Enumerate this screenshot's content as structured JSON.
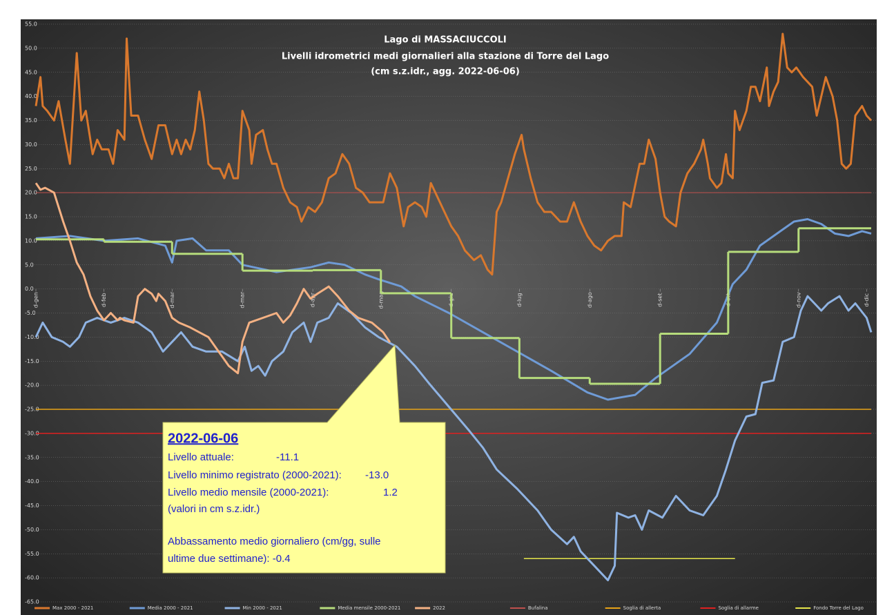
{
  "chart_data": {
    "type": "line",
    "title": "Lago di MASSACIUCCOLI",
    "subtitle": [
      "Livelli idrometrici medi giornalieri alla stazione di Torre del Lago",
      "(cm s.z.idr., agg.  2022-06-06)"
    ],
    "xlim": [
      0,
      368
    ],
    "xticks": [
      {
        "value": 0,
        "label": "d-gen"
      },
      {
        "value": 30,
        "label": "d-feb"
      },
      {
        "value": 60,
        "label": "d-mar"
      },
      {
        "value": 91,
        "label": "d-mar"
      },
      {
        "value": 122,
        "label": "d-apr"
      },
      {
        "value": 152,
        "label": "d-mag"
      },
      {
        "value": 183,
        "label": "d-giu"
      },
      {
        "value": 213,
        "label": "d-lug"
      },
      {
        "value": 244,
        "label": "d-ago"
      },
      {
        "value": 275,
        "label": "d-set"
      },
      {
        "value": 305,
        "label": "d-ott"
      },
      {
        "value": 336,
        "label": "d-nov"
      },
      {
        "value": 366,
        "label": "d-dic"
      }
    ],
    "ylim": [
      -65,
      55
    ],
    "yticks": [
      {
        "value": 55,
        "label": "55.0"
      },
      {
        "value": 50,
        "label": "50.0"
      },
      {
        "value": 45,
        "label": "45.0"
      },
      {
        "value": 40,
        "label": "40.0"
      },
      {
        "value": 35,
        "label": "35.0"
      },
      {
        "value": 30,
        "label": "30.0"
      },
      {
        "value": 25,
        "label": "25.0"
      },
      {
        "value": 20,
        "label": "20.0"
      },
      {
        "value": 15,
        "label": "15.0"
      },
      {
        "value": 10,
        "label": "10.0"
      },
      {
        "value": 5,
        "label": "5.0"
      },
      {
        "value": 0,
        "label": "0.0"
      },
      {
        "value": -5,
        "label": "-5.0"
      },
      {
        "value": -10,
        "label": "-10.0"
      },
      {
        "value": -15,
        "label": "-15.0"
      },
      {
        "value": -20,
        "label": "-20.0"
      },
      {
        "value": -25,
        "label": "-25.0"
      },
      {
        "value": -30,
        "label": "-30.0"
      },
      {
        "value": -35,
        "label": "-35.0"
      },
      {
        "value": -40,
        "label": "-40.0"
      },
      {
        "value": -45,
        "label": "-45.0"
      },
      {
        "value": -50,
        "label": "-50.0"
      },
      {
        "value": -55,
        "label": "-55.0"
      },
      {
        "value": -60,
        "label": "-60.0"
      },
      {
        "value": -65,
        "label": "-65.0"
      }
    ],
    "grid": true,
    "legend": "bottom",
    "series": [
      {
        "name": "Max 2000 - 2021",
        "color": "#d9782d",
        "width": 3,
        "x": [
          0,
          2,
          3,
          5,
          8,
          10,
          13,
          15,
          18,
          20,
          22,
          25,
          27,
          29,
          32,
          34,
          36,
          39,
          40,
          42,
          45,
          48,
          51,
          54,
          57,
          60,
          62,
          64,
          66,
          68,
          70,
          72,
          74,
          76,
          78,
          81,
          83,
          85,
          87,
          89,
          91,
          94,
          95,
          97,
          100,
          102,
          104,
          106,
          109,
          112,
          115,
          117,
          120,
          123,
          126,
          129,
          132,
          135,
          138,
          141,
          144,
          147,
          150,
          153,
          156,
          159,
          162,
          164,
          167,
          170,
          172,
          174,
          177,
          180,
          183,
          186,
          189,
          193,
          196,
          199,
          201,
          203,
          205,
          208,
          211,
          214,
          215,
          218,
          221,
          224,
          227,
          231,
          234,
          237,
          240,
          243,
          246,
          249,
          252,
          255,
          258,
          259,
          262,
          266,
          268,
          270,
          273,
          275,
          277,
          279,
          282,
          284,
          287,
          290,
          293,
          294,
          296,
          297,
          300,
          302,
          304,
          305,
          307,
          308,
          310,
          313,
          315,
          317,
          319,
          322,
          323,
          325,
          327,
          329,
          331,
          333,
          335,
          338,
          342,
          344,
          346,
          348,
          351,
          353,
          355,
          357,
          359,
          361,
          364,
          366,
          368
        ],
        "values": [
          38,
          44,
          38,
          37,
          35,
          39,
          31,
          26,
          49,
          35,
          37,
          28,
          31,
          29,
          29,
          26,
          33,
          31,
          52,
          36,
          36,
          31,
          27,
          34,
          34,
          28,
          31,
          28,
          31,
          29,
          33,
          41,
          35,
          26,
          25,
          25,
          23,
          26,
          23,
          23,
          37,
          33,
          26,
          32,
          33,
          29,
          26,
          26,
          21,
          18,
          17,
          14,
          17,
          16,
          18,
          23,
          24,
          28,
          26,
          21,
          20,
          18,
          18,
          18,
          24,
          21,
          13,
          17,
          18,
          17,
          15,
          22,
          19,
          16,
          13,
          11,
          8,
          6,
          7,
          4,
          3,
          16,
          18,
          23,
          28,
          32,
          29,
          23,
          18,
          16,
          16,
          14,
          14,
          18,
          14,
          11,
          9,
          8,
          10,
          11,
          11,
          18,
          17,
          26,
          26,
          31,
          27,
          20,
          15,
          14,
          13,
          20,
          24,
          26,
          29,
          31,
          26,
          23,
          21,
          22,
          28,
          24,
          23,
          37,
          33,
          37,
          42,
          42,
          39,
          46,
          38,
          41,
          43,
          53,
          46,
          45,
          46,
          44,
          42,
          36,
          40,
          44,
          40,
          35,
          26,
          25,
          26,
          36,
          38,
          36,
          35
        ]
      },
      {
        "name": "Media 2000 - 2021",
        "color": "#6f9bd6",
        "width": 3,
        "x": [
          0,
          15,
          30,
          45,
          57,
          60,
          62,
          69,
          75,
          85,
          91,
          106,
          121,
          129,
          136,
          145,
          151,
          161,
          167,
          182,
          197,
          212,
          227,
          243,
          252,
          264,
          273,
          288,
          300,
          307,
          313,
          319,
          328,
          334,
          340,
          346,
          352,
          358,
          364,
          368
        ],
        "values": [
          10.5,
          11,
          10,
          10.5,
          9,
          5.5,
          10,
          10.5,
          8,
          8,
          5,
          3.5,
          4.5,
          5.5,
          5,
          3,
          2,
          0.5,
          -1.5,
          -5,
          -9,
          -13,
          -17,
          -21.5,
          -23,
          -22,
          -18.5,
          -13.5,
          -7,
          1,
          4,
          9,
          12,
          14,
          14.5,
          13.5,
          11.5,
          11,
          12,
          11.5
        ]
      },
      {
        "name": "Min 2000 - 2021",
        "color": "#8fb3e3",
        "width": 3,
        "x": [
          0,
          3,
          7,
          12,
          15,
          19,
          22,
          27,
          33,
          39,
          45,
          51,
          56,
          60,
          64,
          69,
          75,
          82,
          89,
          92,
          95,
          98,
          101,
          104,
          109,
          113,
          118,
          121,
          124,
          129,
          133,
          139,
          145,
          151,
          159,
          167,
          173,
          182,
          191,
          197,
          203,
          212,
          221,
          227,
          234,
          237,
          240,
          246,
          252,
          255,
          256,
          261,
          264,
          267,
          270,
          276,
          282,
          288,
          294,
          300,
          304,
          308,
          313,
          317,
          320,
          325,
          329,
          334,
          337,
          340,
          343,
          346,
          349,
          354,
          358,
          361,
          366,
          368
        ],
        "values": [
          -10,
          -7,
          -10,
          -11,
          -12,
          -10,
          -7,
          -6,
          -7,
          -6,
          -7,
          -9,
          -13,
          -11,
          -9,
          -12,
          -13,
          -13,
          -15,
          -12,
          -17,
          -16,
          -18,
          -15,
          -13,
          -9,
          -7,
          -11,
          -7,
          -6,
          -3,
          -5,
          -8,
          -10,
          -12,
          -16,
          -19.5,
          -24.5,
          -29.5,
          -33,
          -37.5,
          -41.5,
          -46,
          -50,
          -53,
          -51.5,
          -54.5,
          -57.5,
          -60.5,
          -57.5,
          -46.5,
          -47.5,
          -47,
          -50,
          -46,
          -47.5,
          -43,
          -46,
          -47,
          -43,
          -37.5,
          -31.5,
          -26.5,
          -26,
          -19.5,
          -19,
          -11,
          -10,
          -4.5,
          -1.5,
          -3,
          -4.5,
          -3,
          -1.5,
          -4.5,
          -3,
          -6,
          -9
        ]
      },
      {
        "name": "Media mensile 2000-2021",
        "color": "#b6dc7c",
        "width": 3,
        "type": "step",
        "x": [
          0,
          30,
          60,
          91,
          122,
          152,
          183,
          213,
          244,
          275,
          305,
          336
        ],
        "values": [
          10.3,
          9.8,
          7.3,
          3.8,
          3.9,
          -0.9,
          -10.2,
          -18.5,
          -19.7,
          -9.3,
          7.7,
          12.6
        ]
      },
      {
        "name": "2022",
        "color": "#f4b183",
        "width": 3,
        "x": [
          0,
          2,
          4,
          8,
          12,
          15,
          18,
          21,
          24,
          27,
          30,
          33,
          36,
          37,
          39,
          43,
          45,
          48,
          51,
          53,
          54,
          57,
          60,
          63,
          68,
          72,
          76,
          82,
          85,
          89,
          91,
          94,
          100,
          106,
          109,
          112,
          115,
          118,
          121,
          124,
          129,
          133,
          138,
          142,
          148,
          153,
          156
        ],
        "values": [
          22,
          20.6,
          21,
          20,
          14,
          10,
          5.5,
          3,
          -1.5,
          -4.5,
          -6.5,
          -5,
          -6.5,
          -6,
          -6.5,
          -7,
          -1.5,
          0,
          -1,
          -2.5,
          -1,
          -2.5,
          -6,
          -7,
          -8,
          -9,
          -10,
          -14,
          -16,
          -17.5,
          -11,
          -7,
          -6,
          -5,
          -7,
          -5.5,
          -3,
          0,
          -2,
          -1,
          0.5,
          -1.5,
          -4.5,
          -6,
          -7,
          -9,
          -11.1
        ]
      },
      {
        "name": "Bufalina",
        "color": "#c0504d",
        "width": 1,
        "x": [
          0,
          368
        ],
        "values": [
          20,
          20
        ]
      },
      {
        "name": "Soglia di allerta",
        "color": "#e8a317",
        "width": 1.5,
        "x": [
          0,
          368
        ],
        "values": [
          -25,
          -25
        ]
      },
      {
        "name": "Soglia di allarme",
        "color": "#e02020",
        "width": 1.5,
        "x": [
          0,
          368
        ],
        "values": [
          -30,
          -30
        ]
      },
      {
        "name": "Fondo Torre del Lago",
        "color": "#e6e64a",
        "width": 1.5,
        "x": [
          215,
          308
        ],
        "values": [
          -56,
          -56
        ]
      }
    ],
    "annotation": {
      "heading": "2022-06-06",
      "rows": [
        [
          "Livello attuale:",
          "-11.1"
        ],
        [
          "Livello minimo registrato (2000-2021):",
          "-13.0"
        ],
        [
          "Livello medio mensile (2000-2021):",
          "1.2"
        ]
      ],
      "note": "(valori in cm s.z.idr.)",
      "text": [
        "Abbassamento medio giornaliero (cm/gg, sulle",
        "ultime due settimane): -0.4"
      ]
    }
  }
}
